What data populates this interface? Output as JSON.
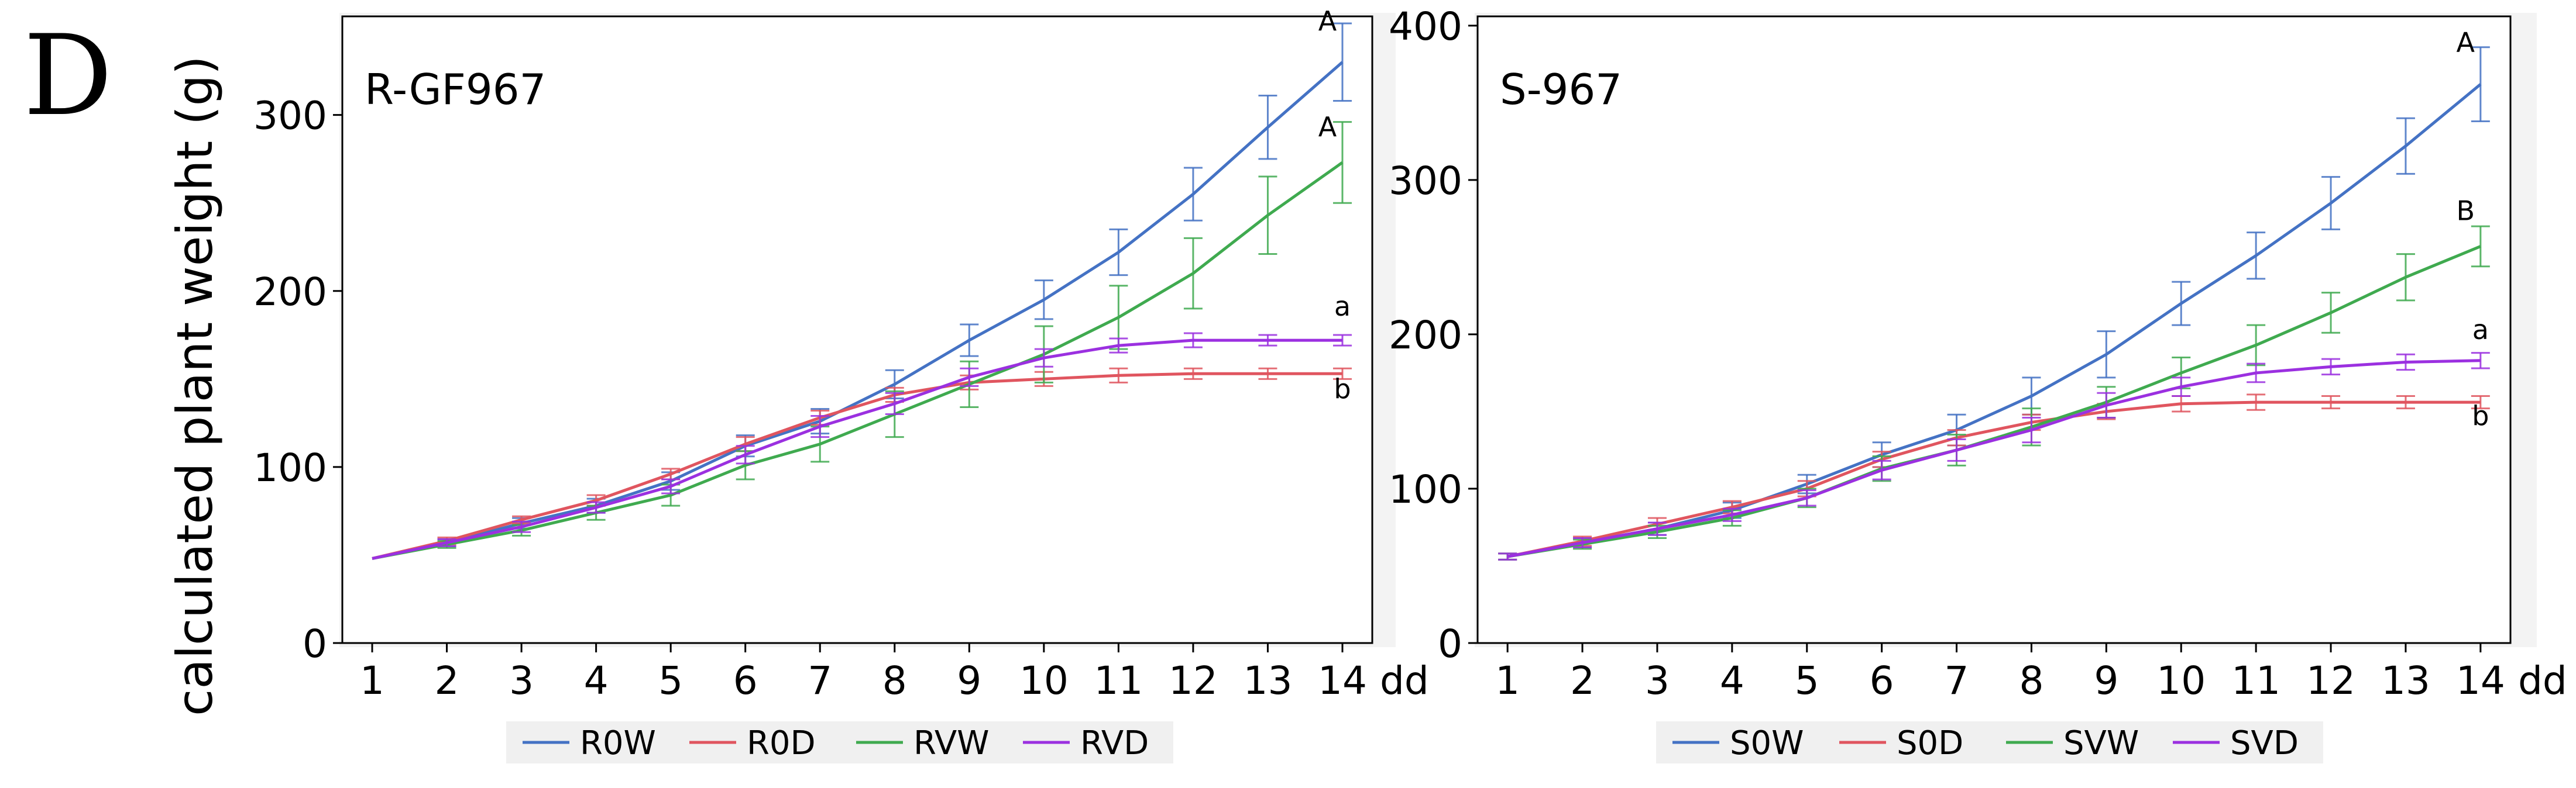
{
  "figure": {
    "panel_label": "D",
    "ylabel": "calculated plant weight (g)"
  },
  "chart_data": [
    {
      "type": "line",
      "title": "R-GF967",
      "xlabel": "dd",
      "ylabel": "calculated plant weight (g)",
      "x": [
        1,
        2,
        3,
        4,
        5,
        6,
        7,
        8,
        9,
        10,
        11,
        12,
        13,
        14
      ],
      "xlim": [
        0.6,
        14.4
      ],
      "ylim": [
        0,
        356
      ],
      "yticks": [
        0,
        100,
        200,
        300
      ],
      "grid": false,
      "legend_position": "bottom",
      "series": [
        {
          "name": "R0W",
          "color": "#4472C4",
          "values": [
            48,
            57,
            68,
            78,
            92,
            112,
            126,
            147,
            172,
            195,
            222,
            255,
            293,
            330
          ],
          "errors": [
            1,
            2,
            3,
            4,
            5,
            6,
            7,
            8,
            9,
            11,
            13,
            15,
            18,
            22
          ]
        },
        {
          "name": "R0D",
          "color": "#E0555F",
          "values": [
            48,
            58,
            70,
            81,
            96,
            113,
            128,
            141,
            148,
            150,
            152,
            153,
            153,
            153
          ],
          "errors": [
            1,
            2,
            2,
            3,
            3,
            4,
            4,
            4,
            4,
            4,
            4,
            3,
            3,
            3
          ]
        },
        {
          "name": "RVW",
          "color": "#3FAA4F",
          "values": [
            48,
            56,
            64,
            74,
            84,
            101,
            113,
            130,
            147,
            164,
            185,
            210,
            243,
            273
          ],
          "errors": [
            1,
            2,
            3,
            4,
            6,
            8,
            10,
            13,
            13,
            16,
            18,
            20,
            22,
            23
          ]
        },
        {
          "name": "RVD",
          "color": "#9B30E0",
          "values": [
            48,
            57,
            66,
            77,
            89,
            107,
            123,
            136,
            151,
            162,
            169,
            172,
            172,
            172
          ],
          "errors": [
            1,
            2,
            3,
            3,
            4,
            5,
            6,
            6,
            5,
            5,
            4,
            4,
            3,
            3
          ]
        }
      ],
      "annotations": [
        {
          "text": "A",
          "x": 13.8,
          "y": 348
        },
        {
          "text": "A",
          "x": 13.8,
          "y": 288
        },
        {
          "text": "a",
          "x": 14.0,
          "y": 186
        },
        {
          "text": "b",
          "x": 14.0,
          "y": 139
        }
      ]
    },
    {
      "type": "line",
      "title": "S-967",
      "xlabel": "dd",
      "ylabel": "calculated plant weight (g)",
      "x": [
        1,
        2,
        3,
        4,
        5,
        6,
        7,
        8,
        9,
        10,
        11,
        12,
        13,
        14
      ],
      "xlim": [
        0.6,
        14.4
      ],
      "ylim": [
        0,
        406
      ],
      "yticks": [
        0,
        100,
        200,
        300,
        400
      ],
      "grid": false,
      "legend_position": "bottom",
      "series": [
        {
          "name": "S0W",
          "color": "#4472C4",
          "values": [
            56,
            65,
            74,
            86,
            103,
            122,
            138,
            160,
            187,
            220,
            251,
            285,
            322,
            362
          ],
          "errors": [
            2,
            3,
            4,
            5,
            6,
            8,
            10,
            12,
            15,
            14,
            15,
            17,
            18,
            24
          ]
        },
        {
          "name": "S0D",
          "color": "#E0555F",
          "values": [
            56,
            66,
            77,
            88,
            100,
            119,
            133,
            143,
            150,
            155,
            156,
            156,
            156,
            156
          ],
          "errors": [
            2,
            3,
            4,
            4,
            5,
            5,
            5,
            5,
            5,
            5,
            5,
            4,
            4,
            4
          ]
        },
        {
          "name": "SVW",
          "color": "#3FAA4F",
          "values": [
            56,
            64,
            72,
            81,
            94,
            113,
            125,
            140,
            156,
            175,
            193,
            214,
            237,
            257
          ],
          "errors": [
            2,
            3,
            4,
            5,
            6,
            8,
            10,
            12,
            10,
            10,
            13,
            13,
            15,
            13
          ]
        },
        {
          "name": "SVD",
          "color": "#9B30E0",
          "values": [
            56,
            65,
            74,
            83,
            94,
            112,
            125,
            138,
            154,
            166,
            175,
            179,
            182,
            183
          ],
          "errors": [
            2,
            3,
            4,
            4,
            5,
            6,
            7,
            8,
            8,
            6,
            6,
            5,
            5,
            5
          ]
        }
      ],
      "annotations": [
        {
          "text": "A",
          "x": 13.8,
          "y": 383
        },
        {
          "text": "B",
          "x": 13.8,
          "y": 274
        },
        {
          "text": "a",
          "x": 14.0,
          "y": 197
        },
        {
          "text": "b",
          "x": 14.0,
          "y": 141
        }
      ]
    }
  ]
}
